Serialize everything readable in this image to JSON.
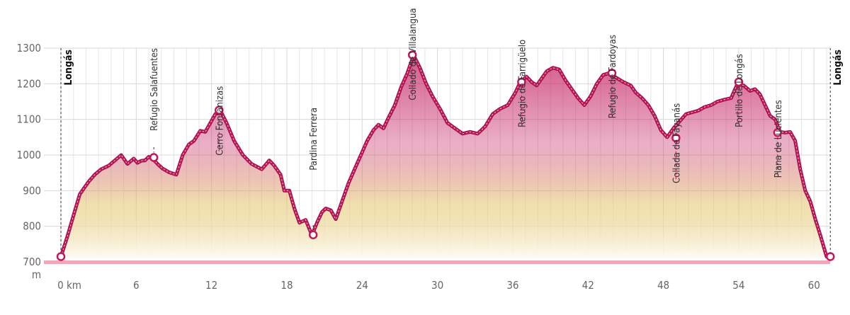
{
  "chart_data": {
    "type": "area",
    "title": "",
    "xlabel": "",
    "ylabel": "",
    "y_unit": "m",
    "x_unit": "km",
    "xlim": [
      0,
      61.5
    ],
    "ylim": [
      700,
      1300
    ],
    "grid": true,
    "x_ticks": [
      {
        "value": 0,
        "label": "0 km"
      },
      {
        "value": 6,
        "label": "6"
      },
      {
        "value": 12,
        "label": "12"
      },
      {
        "value": 18,
        "label": "18"
      },
      {
        "value": 24,
        "label": "24"
      },
      {
        "value": 30,
        "label": "30"
      },
      {
        "value": 36,
        "label": "36"
      },
      {
        "value": 42,
        "label": "42"
      },
      {
        "value": 48,
        "label": "48"
      },
      {
        "value": 54,
        "label": "54"
      },
      {
        "value": 60,
        "label": "60"
      }
    ],
    "y_ticks": [
      {
        "value": 700,
        "label": "700"
      },
      {
        "value": 800,
        "label": "800"
      },
      {
        "value": 900,
        "label": "900"
      },
      {
        "value": 1000,
        "label": "1000"
      },
      {
        "value": 1100,
        "label": "1100"
      },
      {
        "value": 1200,
        "label": "1200"
      },
      {
        "value": 1300,
        "label": "1300"
      }
    ],
    "x": [
      0,
      0.5,
      1,
      1.5,
      1.8,
      2.2,
      2.7,
      3.2,
      3.8,
      4.3,
      4.8,
      5.3,
      5.8,
      6.1,
      6.4,
      6.7,
      7.0,
      7.3,
      7.7,
      8.1,
      8.6,
      9.2,
      9.7,
      10.2,
      10.6,
      11.1,
      11.5,
      11.9,
      12.3,
      12.7,
      13.2,
      13.8,
      14.5,
      15.2,
      16.0,
      16.6,
      17.0,
      17.5,
      17.8,
      18.2,
      18.6,
      19.0,
      19.5,
      20.0,
      20.4,
      20.8,
      21.1,
      21.5,
      21.9,
      22.4,
      22.9,
      23.4,
      23.9,
      24.4,
      24.9,
      25.3,
      25.7,
      26.1,
      26.6,
      27.1,
      27.6,
      28.1,
      28.6,
      29.1,
      29.6,
      30.2,
      30.8,
      31.4,
      32.0,
      32.6,
      33.2,
      33.8,
      34.4,
      35.0,
      35.6,
      36.2,
      36.6,
      37.1,
      37.5,
      37.9,
      38.3,
      38.7,
      39.2,
      39.7,
      40.2,
      40.7,
      41.2,
      41.7,
      42.2,
      42.7,
      43.2,
      43.7,
      44.2,
      44.8,
      45.4,
      45.8,
      46.3,
      46.8,
      47.3,
      47.8,
      48.3,
      48.8,
      49.3,
      49.8,
      50.3,
      50.8,
      51.3,
      51.8,
      52.3,
      52.8,
      53.4,
      53.9,
      54.4,
      54.9,
      55.3,
      55.7,
      56.1,
      56.5,
      56.9,
      57.3,
      57.7,
      58.1,
      58.5,
      58.9,
      59.3,
      59.7,
      60.1,
      60.5,
      61.0,
      61.3
    ],
    "y": [
      715,
      770,
      830,
      890,
      905,
      925,
      945,
      960,
      970,
      985,
      1000,
      975,
      990,
      978,
      984,
      985,
      995,
      990,
      975,
      962,
      952,
      945,
      1000,
      1030,
      1040,
      1068,
      1065,
      1090,
      1115,
      1125,
      1090,
      1040,
      1000,
      975,
      960,
      985,
      970,
      945,
      900,
      900,
      850,
      810,
      818,
      775,
      810,
      840,
      850,
      845,
      820,
      870,
      920,
      960,
      1000,
      1040,
      1070,
      1085,
      1075,
      1105,
      1140,
      1190,
      1230,
      1280,
      1245,
      1200,
      1165,
      1130,
      1090,
      1075,
      1060,
      1065,
      1060,
      1080,
      1115,
      1130,
      1140,
      1175,
      1205,
      1220,
      1205,
      1195,
      1215,
      1235,
      1245,
      1240,
      1210,
      1185,
      1160,
      1140,
      1165,
      1200,
      1225,
      1230,
      1218,
      1205,
      1195,
      1175,
      1160,
      1140,
      1110,
      1070,
      1050,
      1075,
      1095,
      1115,
      1120,
      1125,
      1135,
      1140,
      1150,
      1155,
      1160,
      1200,
      1195,
      1180,
      1185,
      1170,
      1140,
      1110,
      1100,
      1065,
      1063,
      1065,
      1040,
      960,
      900,
      870,
      820,
      775,
      715,
      715
    ],
    "points_of_interest": [
      {
        "name": "Longás",
        "km": 0,
        "elevation": 715,
        "side": "above",
        "bold": true
      },
      {
        "name": "Refugio Salafuentes",
        "km": 7.4,
        "elevation": 993,
        "side": "above"
      },
      {
        "name": "Cerro Fontanizas",
        "km": 12.6,
        "elevation": 1126,
        "side": "below"
      },
      {
        "name": "Pardina Ferrera",
        "km": 20.1,
        "elevation": 776,
        "side": "above"
      },
      {
        "name": "Collado de Villalangua",
        "km": 28.0,
        "elevation": 1281,
        "side": "below"
      },
      {
        "name": "Refugio de Farrigüelo",
        "km": 36.7,
        "elevation": 1205,
        "side": "below"
      },
      {
        "name": "Refugio de Fardoyas",
        "km": 43.9,
        "elevation": 1230,
        "side": "below"
      },
      {
        "name": "Collada de Fayanás",
        "km": 49.0,
        "elevation": 1048,
        "side": "below"
      },
      {
        "name": "Portillo de Longás",
        "km": 54.0,
        "elevation": 1205,
        "side": "below"
      },
      {
        "name": "Plana de Lucientes",
        "km": 57.1,
        "elevation": 1063,
        "side": "below"
      },
      {
        "name": "Longás",
        "km": 61.3,
        "elevation": 715,
        "side": "above",
        "bold": true
      }
    ],
    "colors": {
      "line": "#c2185b",
      "line_outline": "#8e1042",
      "fill_top": "#c2185b",
      "fill_mid": "#e4c56a",
      "fill_bottom": "#ffffff",
      "baseline": "#f2a7b8",
      "grid": "#e6e6e6",
      "grid_major": "#d8d8d8"
    }
  }
}
